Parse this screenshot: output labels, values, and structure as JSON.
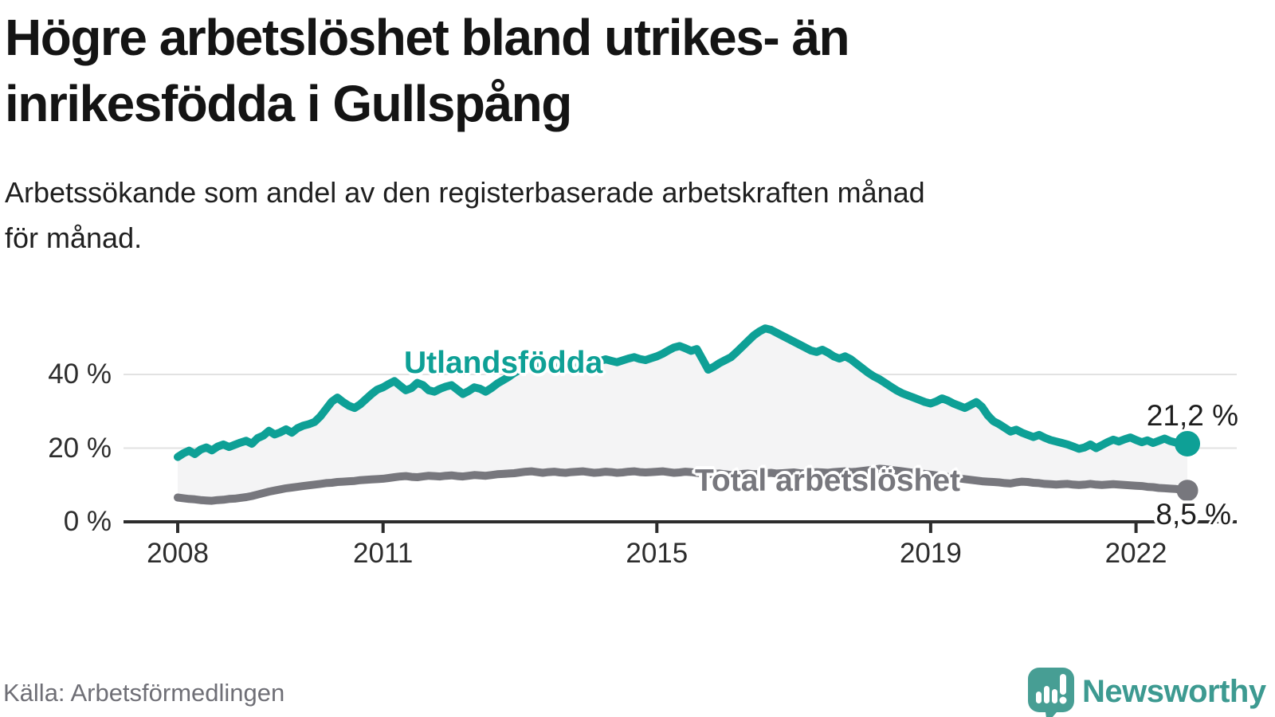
{
  "header": {
    "title_lines": [
      "Högre arbetslöshet bland utrikes- än",
      "inrikesfödda i Gullspång"
    ],
    "subtitle_lines": [
      "Arbetssökande som andel av den registerbaserade arbetskraften månad",
      "för månad."
    ]
  },
  "footer": {
    "source": "Källa: Arbetsförmedlingen",
    "logo_text": "Newsworthy"
  },
  "colors": {
    "series_foreign_born": "#0ea096",
    "series_total": "#77777d",
    "band_fill": "#f4f4f5",
    "gridline": "#e2e2e2",
    "axis": "#2d2d2d",
    "logo_teal": "#479e94"
  },
  "chart_data": {
    "type": "line",
    "unit": "%",
    "x_start_year": 2008,
    "points_per_year": 12,
    "x_ticks": [
      2008,
      2011,
      2015,
      2019,
      2022
    ],
    "y_ticks": [
      0,
      20,
      40
    ],
    "y_tick_labels": [
      "0 %",
      "20 %",
      "40 %"
    ],
    "ylim": [
      0,
      57
    ],
    "grid": "horizontal-only",
    "legend": "inline-labels",
    "band_fill_between_series": true,
    "series": [
      {
        "name": "Utlandsfödda",
        "color": "#0ea096",
        "end_label": "21,2 %",
        "end_value": 21.2,
        "values": [
          17.6,
          18.6,
          19.3,
          18.4,
          19.6,
          20.2,
          19.4,
          20.4,
          21.0,
          20.3,
          20.9,
          21.5,
          22.0,
          21.2,
          22.7,
          23.4,
          24.7,
          23.7,
          24.3,
          25.1,
          24.2,
          25.4,
          26.1,
          26.5,
          27.1,
          28.6,
          30.6,
          32.6,
          33.7,
          32.5,
          31.5,
          30.9,
          31.9,
          33.3,
          34.7,
          35.9,
          36.5,
          37.4,
          38.2,
          36.9,
          35.7,
          36.3,
          37.7,
          37.1,
          35.7,
          35.3,
          36.1,
          36.7,
          37.1,
          35.9,
          34.7,
          35.5,
          36.5,
          36.1,
          35.3,
          36.3,
          37.5,
          38.4,
          39.3,
          40.4,
          41.3,
          42.1,
          42.7,
          42.2,
          41.7,
          42.3,
          42.9,
          43.2,
          42.7,
          42.3,
          42.8,
          43.3,
          43.7,
          43.2,
          43.6,
          44.1,
          43.7,
          43.3,
          43.8,
          44.3,
          44.7,
          44.2,
          43.9,
          44.4,
          44.9,
          45.6,
          46.5,
          47.3,
          47.7,
          47.1,
          46.4,
          46.9,
          44.1,
          41.3,
          42.1,
          43.1,
          43.9,
          44.7,
          46.1,
          47.6,
          49.1,
          50.6,
          51.7,
          52.5,
          52.1,
          51.3,
          50.5,
          49.7,
          48.9,
          48.1,
          47.3,
          46.5,
          46.1,
          46.7,
          45.9,
          44.9,
          44.3,
          44.9,
          44.1,
          42.9,
          41.7,
          40.5,
          39.5,
          38.7,
          37.7,
          36.7,
          35.7,
          34.9,
          34.3,
          33.7,
          33.1,
          32.5,
          32.1,
          32.7,
          33.5,
          32.9,
          32.1,
          31.5,
          30.9,
          31.7,
          32.5,
          31.2,
          28.9,
          27.3,
          26.5,
          25.5,
          24.5,
          25.0,
          24.2,
          23.6,
          23.0,
          23.6,
          22.8,
          22.2,
          21.8,
          21.4,
          21.0,
          20.4,
          19.8,
          20.2,
          21.0,
          20.0,
          20.8,
          21.6,
          22.3,
          21.8,
          22.4,
          22.9,
          22.2,
          21.6,
          22.1,
          21.4,
          22.0,
          22.6,
          21.9,
          21.5,
          21.3,
          21.2
        ]
      },
      {
        "name": "Total arbetslöshet",
        "color": "#77777d",
        "end_label": "8,5 %",
        "end_value": 8.5,
        "values": [
          6.6,
          6.4,
          6.2,
          6.1,
          5.9,
          5.8,
          5.7,
          5.9,
          6.0,
          6.2,
          6.3,
          6.5,
          6.7,
          7.0,
          7.4,
          7.8,
          8.2,
          8.5,
          8.8,
          9.1,
          9.3,
          9.5,
          9.7,
          9.9,
          10.1,
          10.3,
          10.5,
          10.6,
          10.8,
          10.9,
          11.0,
          11.1,
          11.3,
          11.4,
          11.5,
          11.6,
          11.7,
          11.9,
          12.1,
          12.3,
          12.4,
          12.2,
          12.1,
          12.3,
          12.5,
          12.4,
          12.3,
          12.5,
          12.6,
          12.4,
          12.3,
          12.5,
          12.7,
          12.6,
          12.5,
          12.7,
          12.9,
          13.0,
          13.1,
          13.2,
          13.4,
          13.6,
          13.7,
          13.5,
          13.3,
          13.5,
          13.6,
          13.4,
          13.3,
          13.5,
          13.6,
          13.7,
          13.5,
          13.3,
          13.4,
          13.6,
          13.5,
          13.3,
          13.4,
          13.6,
          13.7,
          13.5,
          13.4,
          13.5,
          13.6,
          13.7,
          13.5,
          13.3,
          13.4,
          13.6,
          13.5,
          13.3,
          13.1,
          12.9,
          13.0,
          13.1,
          12.9,
          12.7,
          12.8,
          13.0,
          13.1,
          12.9,
          13.0,
          13.2,
          13.3,
          13.1,
          13.2,
          13.3,
          13.4,
          13.2,
          13.1,
          13.3,
          13.5,
          13.4,
          13.3,
          13.5,
          13.6,
          13.7,
          13.5,
          13.6,
          13.8,
          14.0,
          14.2,
          14.4,
          14.3,
          14.1,
          13.9,
          13.7,
          13.5,
          13.3,
          13.1,
          13.0,
          12.8,
          12.6,
          12.4,
          12.2,
          12.0,
          11.8,
          11.6,
          11.4,
          11.2,
          11.0,
          10.9,
          10.8,
          10.7,
          10.5,
          10.4,
          10.7,
          10.9,
          10.8,
          10.6,
          10.5,
          10.3,
          10.2,
          10.1,
          10.2,
          10.3,
          10.1,
          10.0,
          10.1,
          10.3,
          10.1,
          10.0,
          10.1,
          10.2,
          10.1,
          10.0,
          9.9,
          9.8,
          9.7,
          9.5,
          9.4,
          9.2,
          9.1,
          9.0,
          8.9,
          8.7,
          8.5
        ]
      }
    ]
  }
}
